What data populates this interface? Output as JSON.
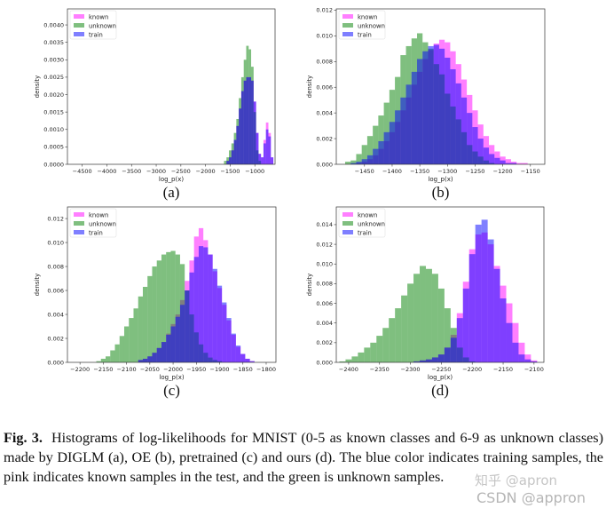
{
  "figure": {
    "caption_label": "Fig. 3.",
    "caption_text": "Histograms of log-likelihoods for MNIST (0-5 as known classes and 6-9 as unknown classes) made by DIGLM (a), OE (b), pretrained (c) and ours (d). The blue color indicates training samples, the pink indicates known samples in the test, and the green is unknown samples.",
    "watermark_1": "知乎 @apron",
    "watermark_2": "CSDN @appron"
  },
  "colors": {
    "known": "#ff00ff",
    "unknown": "#008000",
    "train": "#0000ff"
  },
  "chart_data": [
    {
      "type": "histogram",
      "panel_label": "(a)",
      "xlabel": "log_p(x)",
      "ylabel": "density",
      "xlim": [
        -4800,
        -590
      ],
      "ylim": [
        0,
        0.00446
      ],
      "grid": false,
      "legend": "top-left",
      "bin_width": 50,
      "xticks": [
        "−4500",
        "−4000",
        "−3500",
        "−3000",
        "−2500",
        "−2000",
        "−1500",
        "−1000"
      ],
      "xtick_values": [
        -4500,
        -4000,
        -3500,
        -3000,
        -2500,
        -2000,
        -1500,
        -1000
      ],
      "yticks": [
        "0.0000",
        "0.0005",
        "0.0010",
        "0.0015",
        "0.0020",
        "0.0025",
        "0.0030",
        "0.0035",
        "0.0040"
      ],
      "ytick_values": [
        0,
        0.0005,
        0.001,
        0.0015,
        0.002,
        0.0025,
        0.003,
        0.0035,
        0.004
      ],
      "x": [
        -1600,
        -1550,
        -1500,
        -1450,
        -1400,
        -1350,
        -1300,
        -1250,
        -1200,
        -1150,
        -1100,
        -1050,
        -1000,
        -950,
        -900,
        -850,
        -800,
        -750,
        -700,
        -650
      ],
      "series": [
        {
          "name": "known",
          "values": [
            0,
            0.0001,
            0.0002,
            0.0004,
            0.0007,
            0.0011,
            0.0016,
            0.0021,
            0.0024,
            0.0025,
            0.0025,
            0.0024,
            0.0018,
            0.0009,
            0.0003,
            0.0002,
            0.0007,
            0.0012,
            0.0009,
            0.0002
          ]
        },
        {
          "name": "unknown",
          "values": [
            0.0001,
            0.0002,
            0.0004,
            0.0006,
            0.0009,
            0.0013,
            0.0019,
            0.0025,
            0.003,
            0.0034,
            0.0033,
            0.0028,
            0.0015,
            0.0004,
            0.0001,
            0,
            0,
            0,
            0,
            0
          ]
        },
        {
          "name": "train",
          "values": [
            0,
            0.0001,
            0.0002,
            0.0004,
            0.0007,
            0.0011,
            0.0016,
            0.0021,
            0.0024,
            0.0025,
            0.0025,
            0.0024,
            0.0018,
            0.0009,
            0.0003,
            0.0002,
            0.0006,
            0.001,
            0.0008,
            0.0002
          ]
        }
      ]
    },
    {
      "type": "histogram",
      "panel_label": "(b)",
      "xlabel": "log_p(x)",
      "ylabel": "density",
      "xlim": [
        -1501,
        -1124
      ],
      "ylim": [
        0,
        0.0121
      ],
      "grid": false,
      "legend": "top-left",
      "bin_width": 10,
      "xticks": [
        "−1450",
        "−1400",
        "−1350",
        "−1300",
        "−1250",
        "−1200",
        "−1150"
      ],
      "xtick_values": [
        -1450,
        -1400,
        -1350,
        -1300,
        -1250,
        -1200,
        -1150
      ],
      "yticks": [
        "0.000",
        "0.002",
        "0.004",
        "0.006",
        "0.008",
        "0.010",
        "0.012"
      ],
      "ytick_values": [
        0,
        0.002,
        0.004,
        0.006,
        0.008,
        0.01,
        0.012
      ],
      "x": [
        -1480,
        -1470,
        -1460,
        -1450,
        -1440,
        -1430,
        -1420,
        -1410,
        -1400,
        -1390,
        -1380,
        -1370,
        -1360,
        -1350,
        -1340,
        -1330,
        -1320,
        -1310,
        -1300,
        -1290,
        -1280,
        -1270,
        -1260,
        -1250,
        -1240,
        -1230,
        -1220,
        -1210,
        -1200,
        -1190,
        -1180,
        -1170,
        -1160,
        -1150
      ],
      "series": [
        {
          "name": "known",
          "values": [
            0,
            0,
            0.0001,
            0.0002,
            0.0004,
            0.0007,
            0.0012,
            0.0018,
            0.0025,
            0.0033,
            0.0042,
            0.0052,
            0.0062,
            0.0072,
            0.0082,
            0.0089,
            0.0094,
            0.0097,
            0.0095,
            0.0088,
            0.0078,
            0.0066,
            0.0054,
            0.0042,
            0.0031,
            0.0022,
            0.0015,
            0.001,
            0.0006,
            0.0004,
            0.0002,
            0.0001,
            0.0001,
            0
          ]
        },
        {
          "name": "unknown",
          "values": [
            0.0002,
            0.0003,
            0.0008,
            0.0015,
            0.0022,
            0.003,
            0.0038,
            0.0048,
            0.0058,
            0.0068,
            0.0085,
            0.0092,
            0.0098,
            0.0102,
            0.0095,
            0.009,
            0.0078,
            0.007,
            0.0055,
            0.0045,
            0.0035,
            0.0025,
            0.0015,
            0.001,
            0.0006,
            0.0003,
            0.0001,
            0,
            0,
            0,
            0,
            0,
            0,
            0
          ]
        },
        {
          "name": "train",
          "values": [
            0,
            0.0001,
            0.0002,
            0.0004,
            0.0007,
            0.0012,
            0.0018,
            0.0025,
            0.0033,
            0.0042,
            0.0052,
            0.0062,
            0.0072,
            0.0082,
            0.0088,
            0.0092,
            0.0093,
            0.009,
            0.0083,
            0.0074,
            0.0063,
            0.0052,
            0.004,
            0.0029,
            0.002,
            0.0013,
            0.0008,
            0.0005,
            0.0003,
            0.0001,
            0.0001,
            0,
            0,
            0
          ]
        }
      ]
    },
    {
      "type": "histogram",
      "panel_label": "(c)",
      "xlabel": "log_p(x)",
      "ylabel": "density",
      "xlim": [
        -2227,
        -1779
      ],
      "ylim": [
        0,
        0.01297
      ],
      "grid": false,
      "legend": "top-left",
      "bin_width": 10,
      "xticks": [
        "−2200",
        "−2150",
        "−2100",
        "−2050",
        "−2000",
        "−1950",
        "−1900",
        "−1850",
        "−1800"
      ],
      "xtick_values": [
        -2200,
        -2150,
        -2100,
        -2050,
        -2000,
        -1950,
        -1900,
        -1850,
        -1800
      ],
      "yticks": [
        "0.000",
        "0.002",
        "0.004",
        "0.006",
        "0.008",
        "0.010",
        "0.012"
      ],
      "ytick_values": [
        0,
        0.002,
        0.004,
        0.006,
        0.008,
        0.01,
        0.012
      ],
      "x": [
        -2180,
        -2170,
        -2160,
        -2150,
        -2140,
        -2130,
        -2120,
        -2110,
        -2100,
        -2090,
        -2080,
        -2070,
        -2060,
        -2050,
        -2040,
        -2030,
        -2020,
        -2010,
        -2000,
        -1990,
        -1980,
        -1970,
        -1960,
        -1950,
        -1940,
        -1930,
        -1920,
        -1910,
        -1900,
        -1890,
        -1880,
        -1870,
        -1860,
        -1850,
        -1840,
        -1830,
        -1820
      ],
      "series": [
        {
          "name": "known",
          "values": [
            0,
            0,
            0,
            0,
            0,
            0,
            0,
            0,
            0,
            0,
            0,
            0.0002,
            0.0003,
            0.0005,
            0.0008,
            0.0012,
            0.0017,
            0.0024,
            0.0032,
            0.004,
            0.0052,
            0.0068,
            0.0085,
            0.0105,
            0.0112,
            0.0102,
            0.009,
            0.0076,
            0.0062,
            0.0048,
            0.0035,
            0.0023,
            0.0013,
            0.0007,
            0.0003,
            0.0001,
            0
          ]
        },
        {
          "name": "unknown",
          "values": [
            0,
            0,
            0.0001,
            0.0003,
            0.0005,
            0.001,
            0.0015,
            0.0022,
            0.003,
            0.0037,
            0.0045,
            0.0055,
            0.0063,
            0.0072,
            0.008,
            0.0085,
            0.009,
            0.0092,
            0.0093,
            0.009,
            0.0082,
            0.006,
            0.004,
            0.0025,
            0.0015,
            0.0008,
            0.0004,
            0.0002,
            0.0001,
            0,
            0,
            0,
            0,
            0,
            0,
            0,
            0
          ]
        },
        {
          "name": "train",
          "values": [
            0,
            0,
            0,
            0,
            0,
            0,
            0,
            0,
            0,
            0,
            0,
            0.0002,
            0.0003,
            0.0005,
            0.0008,
            0.0012,
            0.0017,
            0.0023,
            0.003,
            0.0038,
            0.0048,
            0.006,
            0.0075,
            0.0088,
            0.0097,
            0.0096,
            0.009,
            0.0078,
            0.0064,
            0.005,
            0.0037,
            0.0024,
            0.0014,
            0.0007,
            0.0003,
            0.0001,
            0
          ]
        }
      ]
    },
    {
      "type": "histogram",
      "panel_label": "(d)",
      "xlabel": "log_p(x)",
      "ylabel": "density",
      "xlim": [
        -2420,
        -2084
      ],
      "ylim": [
        0,
        0.0158
      ],
      "grid": false,
      "legend": "top-left",
      "bin_width": 10,
      "xticks": [
        "−2400",
        "−2350",
        "−2300",
        "−2250",
        "−2200",
        "−2150",
        "−2100"
      ],
      "xtick_values": [
        -2400,
        -2350,
        -2300,
        -2250,
        -2200,
        -2150,
        -2100
      ],
      "yticks": [
        "0.000",
        "0.002",
        "0.004",
        "0.006",
        "0.008",
        "0.010",
        "0.012",
        "0.014"
      ],
      "ytick_values": [
        0,
        0.002,
        0.004,
        0.006,
        0.008,
        0.01,
        0.012,
        0.014
      ],
      "x": [
        -2410,
        -2400,
        -2390,
        -2380,
        -2370,
        -2360,
        -2350,
        -2340,
        -2330,
        -2320,
        -2310,
        -2300,
        -2290,
        -2280,
        -2270,
        -2260,
        -2250,
        -2240,
        -2230,
        -2220,
        -2210,
        -2200,
        -2190,
        -2180,
        -2170,
        -2160,
        -2150,
        -2140,
        -2130,
        -2120,
        -2110,
        -2100
      ],
      "series": [
        {
          "name": "known",
          "values": [
            0,
            0,
            0,
            0,
            0,
            0,
            0,
            0,
            0,
            0,
            0,
            0,
            0.0001,
            0.0002,
            0.0003,
            0.0005,
            0.0008,
            0.0015,
            0.0028,
            0.005,
            0.0082,
            0.0115,
            0.013,
            0.0132,
            0.012,
            0.0098,
            0.0078,
            0.006,
            0.004,
            0.002,
            0.0008,
            0.0002
          ]
        },
        {
          "name": "unknown",
          "values": [
            0.0001,
            0.0003,
            0.0006,
            0.001,
            0.0015,
            0.002,
            0.0027,
            0.0035,
            0.0045,
            0.0055,
            0.0068,
            0.008,
            0.009,
            0.0098,
            0.0095,
            0.009,
            0.0075,
            0.0055,
            0.0035,
            0.0015,
            0.0005,
            0.0001,
            0,
            0,
            0,
            0,
            0,
            0,
            0,
            0,
            0,
            0
          ]
        },
        {
          "name": "train",
          "values": [
            0,
            0,
            0,
            0,
            0,
            0,
            0,
            0,
            0,
            0,
            0,
            0,
            0.0001,
            0.0002,
            0.0003,
            0.0005,
            0.0008,
            0.0015,
            0.0025,
            0.0045,
            0.0075,
            0.011,
            0.014,
            0.0145,
            0.0125,
            0.0095,
            0.0065,
            0.004,
            0.002,
            0.0008,
            0.0003,
            0.0001
          ]
        }
      ]
    }
  ]
}
